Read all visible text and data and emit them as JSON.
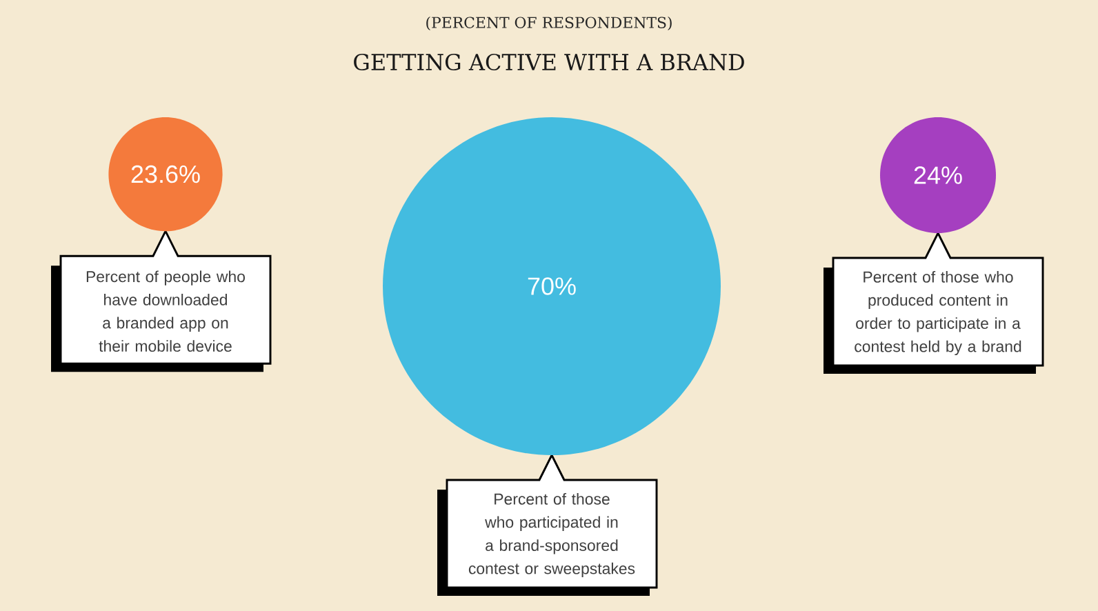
{
  "chart_data": {
    "type": "other",
    "subtitle": "(PERCENT OF RESPONDENTS)",
    "title": "GETTING ACTIVE WITH A BRAND",
    "categories": [
      "Percent of people who have downloaded a branded app on their mobile device",
      "Percent of those who participated in a brand-sponsored contest or sweepstakes",
      "Percent of those who produced content in order to participate in a contest held by a brand"
    ],
    "values": [
      23.6,
      70,
      24
    ],
    "value_labels": [
      "23.6%",
      "70%",
      "24%"
    ],
    "colors": [
      "#f47a3c",
      "#43bce0",
      "#a53fc0"
    ]
  }
}
